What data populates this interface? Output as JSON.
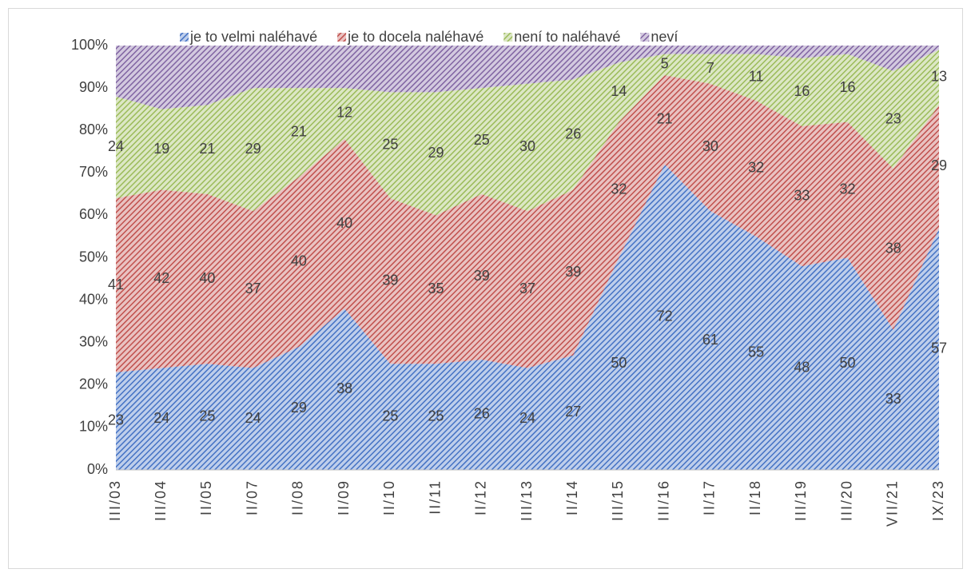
{
  "chart_data": {
    "type": "stacked_area",
    "categories": [
      "III/03",
      "III/04",
      "II/05",
      "II/07",
      "II/08",
      "II/09",
      "II/10",
      "II/11",
      "II/12",
      "III/13",
      "II/14",
      "III/15",
      "III/16",
      "II/17",
      "II/18",
      "III/19",
      "III/20",
      "VII/21",
      "IX/23"
    ],
    "series": [
      {
        "name": "je to velmi naléhavé",
        "color": "#4472c4",
        "data_labels": true,
        "values": [
          23,
          24,
          25,
          24,
          29,
          38,
          25,
          25,
          26,
          24,
          27,
          50,
          72,
          61,
          55,
          48,
          50,
          33,
          57
        ]
      },
      {
        "name": "je to docela naléhavé",
        "color": "#c0504d",
        "data_labels": true,
        "values": [
          41,
          42,
          40,
          37,
          40,
          40,
          39,
          35,
          39,
          37,
          39,
          32,
          21,
          30,
          32,
          33,
          32,
          38,
          29
        ]
      },
      {
        "name": "není to naléhavé",
        "color": "#9bbb59",
        "data_labels": true,
        "values": [
          24,
          19,
          21,
          29,
          21,
          12,
          25,
          29,
          25,
          30,
          26,
          14,
          5,
          7,
          11,
          16,
          16,
          23,
          13
        ]
      },
      {
        "name": "neví",
        "color": "#8064a2",
        "data_labels": false,
        "values": [
          12,
          15,
          14,
          10,
          10,
          10,
          11,
          11,
          10,
          9,
          8,
          4,
          2,
          2,
          2,
          3,
          2,
          6,
          1
        ]
      }
    ],
    "ylim": [
      0,
      100
    ],
    "yticks": [
      {
        "value": 0,
        "label": "0%"
      },
      {
        "value": 10,
        "label": "10%"
      },
      {
        "value": 20,
        "label": "20%"
      },
      {
        "value": 30,
        "label": "30%"
      },
      {
        "value": 40,
        "label": "40%"
      },
      {
        "value": 50,
        "label": "50%"
      },
      {
        "value": 60,
        "label": "60%"
      },
      {
        "value": 70,
        "label": "70%"
      },
      {
        "value": 80,
        "label": "80%"
      },
      {
        "value": 90,
        "label": "90%"
      },
      {
        "value": 100,
        "label": "100%"
      }
    ],
    "grid": false,
    "legend": "top"
  }
}
